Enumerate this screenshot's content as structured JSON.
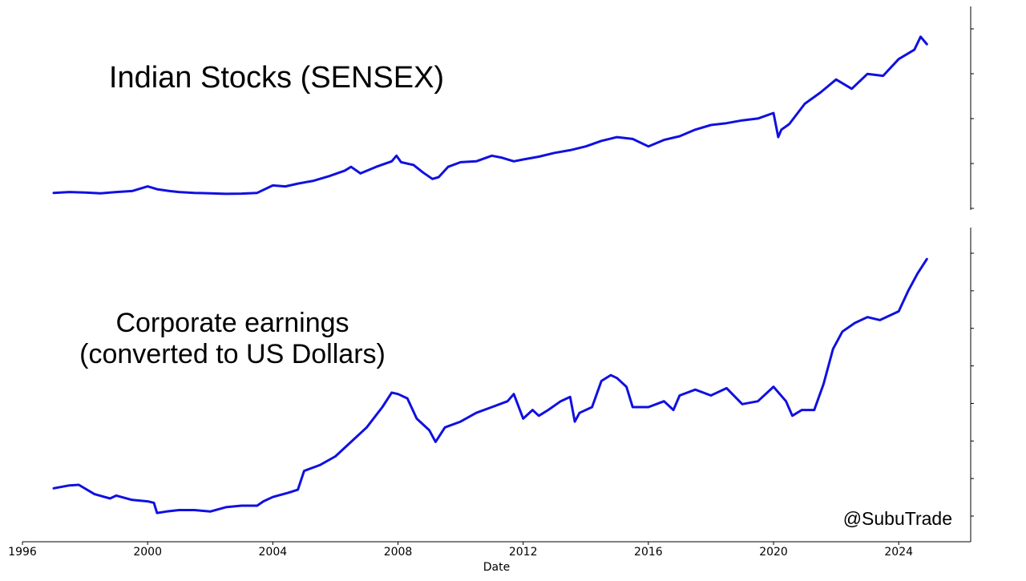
{
  "watermark": "@SubuTrade",
  "colors": {
    "line": "#1010e0",
    "axis": "#000000"
  },
  "chart_data": [
    {
      "type": "line",
      "title": "Indian Stocks (SENSEX)",
      "xlabel": "",
      "ylabel": "",
      "x_type": "year",
      "xlim": [
        1996,
        2026.3
      ],
      "ylim": [
        0,
        100
      ],
      "y_tick_count": 5,
      "y_axis_side": "right",
      "grid": false,
      "series": [
        {
          "x": [
            1997.0,
            1997.5,
            1998.0,
            1998.5,
            1999.0,
            1999.5,
            2000.0,
            2000.3,
            2000.7,
            2001.0,
            2001.5,
            2002.0,
            2002.5,
            2003.0,
            2003.5,
            2004.0,
            2004.4,
            2004.8,
            2005.3,
            2005.8,
            2006.3,
            2006.5,
            2006.8,
            2007.3,
            2007.8,
            2007.95,
            2008.1,
            2008.5,
            2008.8,
            2009.1,
            2009.3,
            2009.6,
            2010.0,
            2010.5,
            2011.0,
            2011.3,
            2011.7,
            2012.0,
            2012.5,
            2013.0,
            2013.5,
            2014.0,
            2014.5,
            2015.0,
            2015.5,
            2016.0,
            2016.5,
            2017.0,
            2017.5,
            2018.0,
            2018.5,
            2019.0,
            2019.5,
            2020.0,
            2020.15,
            2020.25,
            2020.5,
            2021.0,
            2021.5,
            2022.0,
            2022.5,
            2023.0,
            2023.5,
            2024.0,
            2024.5,
            2024.7,
            2024.9
          ],
          "y": [
            4.0,
            4.5,
            4.2,
            3.8,
            4.5,
            5.0,
            7.5,
            6.0,
            5.0,
            4.5,
            4.0,
            3.8,
            3.5,
            3.6,
            4.0,
            8.0,
            7.5,
            9.0,
            10.5,
            13.0,
            16.0,
            18.0,
            14.5,
            18.0,
            21.0,
            24.0,
            20.5,
            19.0,
            15.0,
            11.5,
            12.5,
            18.0,
            20.5,
            21.0,
            24.0,
            23.0,
            21.0,
            22.0,
            23.5,
            25.5,
            27.0,
            29.0,
            32.0,
            34.0,
            33.0,
            29.0,
            32.5,
            34.5,
            38.0,
            40.5,
            41.5,
            43.0,
            44.0,
            47.0,
            34.0,
            38.0,
            41.0,
            52.0,
            58.0,
            65.0,
            60.0,
            68.0,
            67.0,
            76.0,
            81.0,
            88.0,
            84.0
          ]
        }
      ]
    },
    {
      "type": "line",
      "title": "Corporate earnings",
      "subtitle": "(converted to US Dollars)",
      "xlabel": "Date",
      "ylabel": "",
      "x_type": "year",
      "xlim": [
        1996,
        2026.3
      ],
      "ylim": [
        0,
        100
      ],
      "y_tick_count": 8,
      "y_axis_side": "right",
      "x_ticks": [
        "1996",
        "2000",
        "2004",
        "2008",
        "2012",
        "2016",
        "2020",
        "2024"
      ],
      "grid": false,
      "series": [
        {
          "x": [
            1997.0,
            1997.5,
            1997.8,
            1998.3,
            1998.8,
            1999.0,
            1999.5,
            2000.0,
            2000.2,
            2000.3,
            2000.6,
            2001.0,
            2001.5,
            2002.0,
            2002.5,
            2003.0,
            2003.5,
            2003.7,
            2004.0,
            2004.5,
            2004.8,
            2005.0,
            2005.5,
            2006.0,
            2006.5,
            2007.0,
            2007.5,
            2007.8,
            2008.0,
            2008.3,
            2008.6,
            2009.0,
            2009.2,
            2009.5,
            2010.0,
            2010.5,
            2011.0,
            2011.5,
            2011.7,
            2012.0,
            2012.3,
            2012.5,
            2012.8,
            2013.2,
            2013.5,
            2013.65,
            2013.8,
            2014.2,
            2014.5,
            2014.8,
            2015.0,
            2015.3,
            2015.5,
            2016.0,
            2016.5,
            2016.8,
            2017.0,
            2017.5,
            2018.0,
            2018.5,
            2019.0,
            2019.5,
            2020.0,
            2020.4,
            2020.6,
            2020.9,
            2021.3,
            2021.6,
            2021.9,
            2022.2,
            2022.6,
            2023.0,
            2023.4,
            2023.8,
            2024.0,
            2024.3,
            2024.6,
            2024.9
          ],
          "y": [
            14.0,
            15.0,
            15.2,
            12.0,
            10.5,
            11.5,
            10.0,
            9.5,
            9.0,
            5.5,
            6.0,
            6.5,
            6.5,
            6.0,
            7.5,
            8.0,
            8.0,
            9.5,
            11.0,
            12.5,
            13.5,
            20.0,
            22.0,
            25.0,
            30.0,
            35.0,
            42.0,
            47.0,
            46.5,
            45.0,
            38.0,
            34.0,
            30.0,
            35.0,
            37.0,
            40.0,
            42.0,
            44.0,
            46.5,
            38.0,
            41.0,
            39.0,
            41.0,
            44.0,
            45.5,
            37.0,
            40.0,
            42.0,
            51.0,
            53.0,
            52.0,
            49.0,
            42.0,
            42.0,
            44.0,
            41.0,
            46.0,
            48.0,
            46.0,
            48.5,
            43.0,
            44.0,
            49.0,
            44.0,
            39.0,
            41.0,
            41.0,
            50.0,
            62.0,
            68.0,
            71.0,
            73.0,
            72.0,
            74.0,
            75.0,
            82.0,
            88.0,
            93.0
          ]
        }
      ]
    }
  ]
}
